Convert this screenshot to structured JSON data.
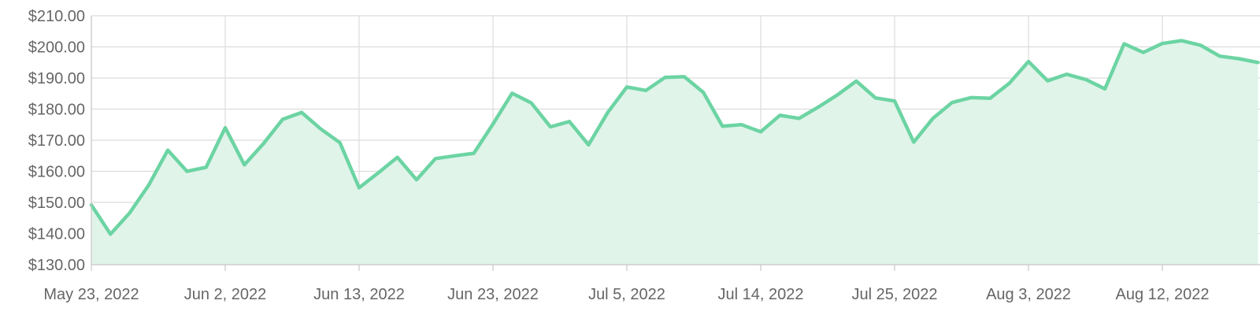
{
  "chart_data": {
    "type": "area",
    "title": "",
    "xlabel": "",
    "ylabel": "",
    "ylim": [
      130,
      210
    ],
    "yticks": [
      "$130.00",
      "$140.00",
      "$150.00",
      "$160.00",
      "$170.00",
      "$180.00",
      "$190.00",
      "$200.00",
      "$210.00"
    ],
    "ytick_values": [
      130,
      140,
      150,
      160,
      170,
      180,
      190,
      200,
      210
    ],
    "xticks": [
      "May 23, 2022",
      "Jun 2, 2022",
      "Jun 13, 2022",
      "Jun 23, 2022",
      "Jul 5, 2022",
      "Jul 14, 2022",
      "Jul 25, 2022",
      "Aug 3, 2022",
      "Aug 12, 2022"
    ],
    "x": [
      "2022-05-23",
      "2022-05-24",
      "2022-05-25",
      "2022-05-26",
      "2022-05-27",
      "2022-05-31",
      "2022-06-01",
      "2022-06-02",
      "2022-06-03",
      "2022-06-06",
      "2022-06-07",
      "2022-06-08",
      "2022-06-09",
      "2022-06-10",
      "2022-06-13",
      "2022-06-14",
      "2022-06-15",
      "2022-06-16",
      "2022-06-17",
      "2022-06-21",
      "2022-06-22",
      "2022-06-23",
      "2022-06-24",
      "2022-06-27",
      "2022-06-28",
      "2022-06-29",
      "2022-06-30",
      "2022-07-01",
      "2022-07-05",
      "2022-07-06",
      "2022-07-07",
      "2022-07-08",
      "2022-07-11",
      "2022-07-12",
      "2022-07-13",
      "2022-07-14",
      "2022-07-15",
      "2022-07-18",
      "2022-07-19",
      "2022-07-20",
      "2022-07-21",
      "2022-07-22",
      "2022-07-25",
      "2022-07-26",
      "2022-07-27",
      "2022-07-28",
      "2022-07-29",
      "2022-08-01",
      "2022-08-02",
      "2022-08-03",
      "2022-08-04",
      "2022-08-05",
      "2022-08-08",
      "2022-08-09",
      "2022-08-10",
      "2022-08-11",
      "2022-08-12",
      "2022-08-15",
      "2022-08-16",
      "2022-08-17",
      "2022-08-18",
      "2022-08-19"
    ],
    "values": [
      149.2,
      139.8,
      146.6,
      155.6,
      166.8,
      160.0,
      161.3,
      174.0,
      162.1,
      168.9,
      176.7,
      178.9,
      173.6,
      169.2,
      154.7,
      159.5,
      164.5,
      157.3,
      164.1,
      165.0,
      165.8,
      175.2,
      185.1,
      182.0,
      174.3,
      176.0,
      168.5,
      178.9,
      187.1,
      186.0,
      190.2,
      190.4,
      185.4,
      174.5,
      175.0,
      172.7,
      178.0,
      177.0,
      180.6,
      184.5,
      189.0,
      183.6,
      182.6,
      169.4,
      177.0,
      182.1,
      183.7,
      183.5,
      188.3,
      195.3,
      189.1,
      191.2,
      189.5,
      186.5,
      201.0,
      198.2,
      201.1,
      202.0,
      200.5,
      197.0,
      196.2,
      195.0
    ],
    "grid": true,
    "legend": "none",
    "line_color": "#6cd4a3",
    "fill_color": "#e0f4ea",
    "grid_color": "#dcdcdc",
    "axis_color": "#c8c8c8",
    "label_color": "#666666"
  }
}
